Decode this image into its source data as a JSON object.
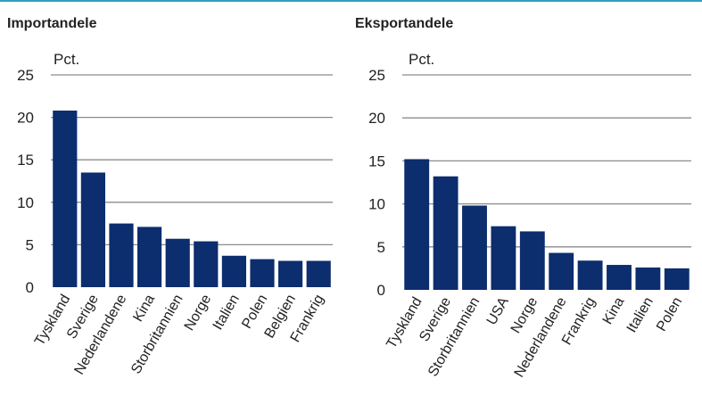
{
  "colors": {
    "bar": "#0c2d6e",
    "grid": "#8c8c8c",
    "accent_line": "#2f9fbf"
  },
  "chart_data": [
    {
      "type": "bar",
      "title": "Importandele",
      "ylabel": "Pct.",
      "ylim": [
        0,
        25
      ],
      "yticks": [
        0,
        5,
        10,
        15,
        20,
        25
      ],
      "grid": true,
      "categories": [
        "Tyskland",
        "Sverige",
        "Nederlandene",
        "Kina",
        "Storbritannien",
        "Norge",
        "Italien",
        "Polen",
        "Belgien",
        "Frankrig"
      ],
      "values": [
        20.8,
        13.5,
        7.5,
        7.1,
        5.7,
        5.4,
        3.7,
        3.3,
        3.1,
        3.1
      ]
    },
    {
      "type": "bar",
      "title": "Eksportandele",
      "ylabel": "Pct.",
      "ylim": [
        0,
        25
      ],
      "yticks": [
        0,
        5,
        10,
        15,
        20,
        25
      ],
      "grid": true,
      "categories": [
        "Tyskland",
        "Sverige",
        "Storbritannien",
        "USA",
        "Norge",
        "Nederlandene",
        "Frankrig",
        "Kina",
        "Italien",
        "Polen"
      ],
      "values": [
        15.2,
        13.2,
        9.8,
        7.4,
        6.8,
        4.3,
        3.4,
        2.9,
        2.6,
        2.5
      ]
    }
  ]
}
